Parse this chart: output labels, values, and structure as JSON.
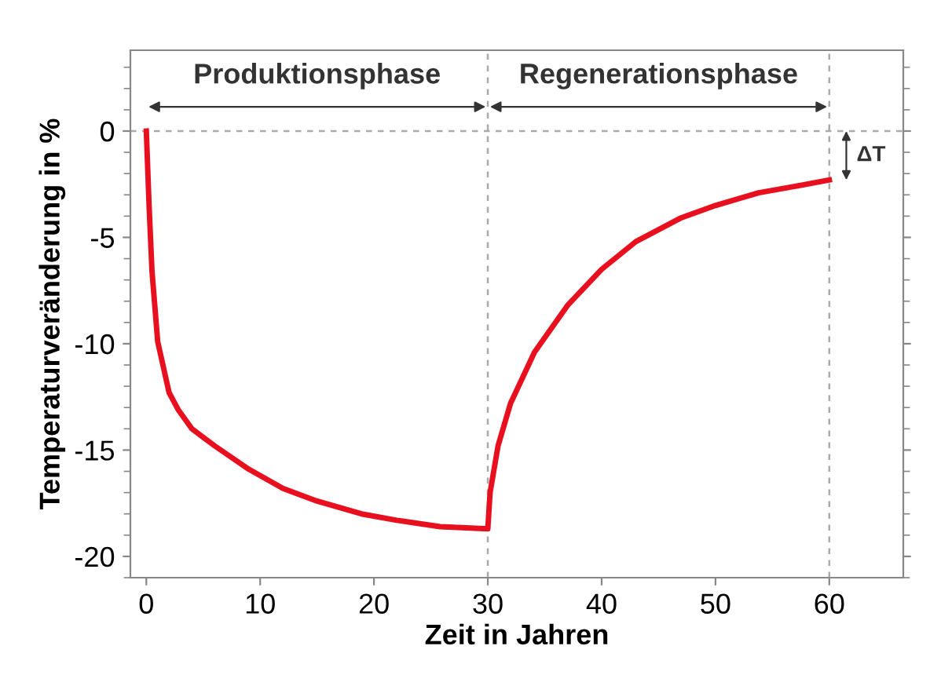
{
  "chart_data": {
    "type": "line",
    "xlabel": "Zeit in Jahren",
    "ylabel": "Temperaturveränderung in %",
    "series": [
      {
        "color": "#e8101e",
        "x": [
          0,
          0.25,
          0.5,
          1,
          2,
          2.8,
          4,
          6,
          9,
          12,
          15,
          18.9,
          22,
          25.8,
          30,
          30.2,
          30.9,
          32,
          34.1,
          37,
          40,
          43,
          46.9,
          50,
          53.8,
          57,
          60
        ],
        "values": [
          0,
          -3.6,
          -6.6,
          -9.9,
          -12.3,
          -13.1,
          -14.0,
          -14.8,
          -15.9,
          -16.8,
          -17.4,
          -18.0,
          -18.3,
          -18.6,
          -18.7,
          -17.0,
          -14.8,
          -12.8,
          -10.4,
          -8.2,
          -6.5,
          -5.2,
          -4.1,
          -3.5,
          -2.9,
          -2.6,
          -2.3
        ]
      }
    ],
    "xlim": [
      -1.4,
      66.5
    ],
    "ylim": [
      -21,
      3.8
    ],
    "xticks": [
      0,
      10,
      20,
      30,
      40,
      50,
      60
    ],
    "yticks": [
      0,
      -5,
      -10,
      -15,
      -20
    ],
    "grid": false,
    "legend": false,
    "marker": "none",
    "line_style": "solid",
    "ref_lines": [
      {
        "axis": "y",
        "value": 0,
        "color": "#aaaaaa",
        "line_style": "dashed"
      },
      {
        "axis": "x",
        "value": 30,
        "color": "#aaaaaa",
        "line_style": "dashed"
      },
      {
        "axis": "x",
        "value": 60,
        "color": "#aaaaaa",
        "line_style": "dashed"
      }
    ],
    "annotations": [
      "Produktionsphase",
      "Regenerationsphase",
      {
        "text": "ΔT",
        "x": 60,
        "y": -2.3
      }
    ]
  }
}
